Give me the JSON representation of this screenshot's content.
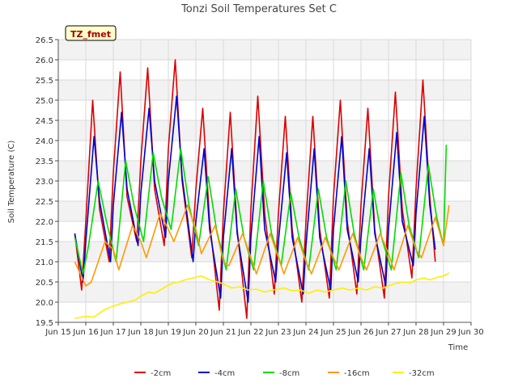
{
  "chart_data": {
    "type": "line",
    "title": "Tonzi Soil Temperatures Set C",
    "xlabel": "Time",
    "ylabel": "Soil Temperature (C)",
    "badge": "TZ_fmet",
    "xlim": [
      15,
      30
    ],
    "ylim": [
      19.5,
      26.5
    ],
    "yticks": [
      19.5,
      20.0,
      20.5,
      21.0,
      21.5,
      22.0,
      22.5,
      23.0,
      23.5,
      24.0,
      24.5,
      25.0,
      25.5,
      26.0,
      26.5
    ],
    "ytick_labels": [
      "19.5",
      "20.0",
      "20.5",
      "21.0",
      "21.5",
      "22.0",
      "22.5",
      "23.0",
      "23.5",
      "24.0",
      "24.5",
      "25.0",
      "25.5",
      "26.0",
      "26.5"
    ],
    "xticks": [
      15,
      16,
      17,
      18,
      19,
      20,
      21,
      22,
      23,
      24,
      25,
      26,
      27,
      28,
      29,
      30
    ],
    "xtick_labels": [
      "Jun 15",
      "Jun 16",
      "Jun 17",
      "Jun 18",
      "Jun 19",
      "Jun 20",
      "Jun 21",
      "Jun 22",
      "Jun 23",
      "Jun 24",
      "Jun 25",
      "Jun 26",
      "Jun 27",
      "Jun 28",
      "Jun 29",
      "Jun 30"
    ],
    "grid": true,
    "legend_position": "bottom",
    "series": [
      {
        "name": "-2cm",
        "color": "#dd0000",
        "x": [
          15.6,
          15.85,
          16.0,
          16.25,
          16.5,
          16.85,
          17.0,
          17.25,
          17.5,
          17.85,
          18.0,
          18.25,
          18.5,
          18.85,
          19.0,
          19.25,
          19.5,
          19.85,
          20.0,
          20.25,
          20.5,
          20.85,
          21.0,
          21.25,
          21.5,
          21.85,
          22.0,
          22.25,
          22.5,
          22.85,
          23.0,
          23.25,
          23.5,
          23.85,
          24.0,
          24.25,
          24.5,
          24.85,
          25.0,
          25.25,
          25.5,
          25.85,
          26.0,
          26.25,
          26.5,
          26.85,
          27.0,
          27.25,
          27.5,
          27.85,
          28.0,
          28.25,
          28.5,
          28.7
        ],
        "y": [
          21.7,
          20.3,
          22.0,
          25.0,
          22.3,
          21.0,
          23.2,
          25.7,
          22.6,
          21.5,
          23.5,
          25.8,
          22.8,
          21.4,
          23.8,
          26.0,
          23.0,
          21.1,
          22.8,
          24.8,
          22.0,
          19.8,
          22.2,
          24.7,
          21.8,
          19.6,
          22.3,
          25.1,
          22.2,
          20.2,
          22.2,
          24.6,
          21.8,
          20.0,
          22.0,
          24.6,
          21.8,
          20.1,
          22.6,
          25.0,
          22.0,
          20.2,
          22.4,
          24.8,
          21.8,
          20.1,
          22.6,
          25.2,
          22.3,
          20.6,
          22.8,
          25.5,
          22.6,
          21.0
        ]
      },
      {
        "name": "-4cm",
        "color": "#0000cc",
        "x": [
          15.6,
          15.9,
          16.0,
          16.3,
          16.5,
          16.9,
          17.0,
          17.3,
          17.5,
          17.9,
          18.0,
          18.3,
          18.5,
          18.9,
          19.0,
          19.3,
          19.5,
          19.9,
          20.0,
          20.3,
          20.5,
          20.9,
          21.0,
          21.3,
          21.5,
          21.9,
          22.0,
          22.3,
          22.5,
          22.9,
          23.0,
          23.3,
          23.5,
          23.9,
          24.0,
          24.3,
          24.5,
          24.9,
          25.0,
          25.3,
          25.5,
          25.9,
          26.0,
          26.3,
          26.5,
          26.9,
          27.0,
          27.3,
          27.5,
          27.9,
          28.0,
          28.3,
          28.5,
          28.7
        ],
        "y": [
          21.7,
          20.5,
          21.5,
          24.1,
          22.5,
          21.0,
          22.4,
          24.7,
          22.8,
          21.4,
          22.7,
          24.8,
          23.0,
          21.6,
          23.0,
          25.1,
          23.1,
          21.0,
          22.0,
          23.8,
          21.8,
          20.1,
          21.6,
          23.8,
          21.7,
          20.0,
          21.6,
          24.1,
          21.8,
          20.5,
          21.5,
          23.7,
          21.6,
          20.2,
          21.4,
          23.8,
          21.6,
          20.3,
          21.8,
          24.1,
          21.8,
          20.5,
          21.6,
          23.8,
          21.7,
          20.4,
          21.8,
          24.2,
          22.0,
          20.9,
          22.2,
          24.6,
          22.4,
          21.3
        ]
      },
      {
        "name": "-8cm",
        "color": "#00dd00",
        "x": [
          15.6,
          15.9,
          16.1,
          16.45,
          16.75,
          17.1,
          17.45,
          17.75,
          18.1,
          18.45,
          18.75,
          19.1,
          19.45,
          19.75,
          20.1,
          20.45,
          20.75,
          21.1,
          21.45,
          21.75,
          22.1,
          22.45,
          22.75,
          23.1,
          23.45,
          23.75,
          24.1,
          24.45,
          24.75,
          25.1,
          25.45,
          25.75,
          26.1,
          26.45,
          26.75,
          27.1,
          27.45,
          27.75,
          28.1,
          28.45,
          28.75,
          29.0,
          29.1
        ],
        "y": [
          21.6,
          20.7,
          21.4,
          23.0,
          22.0,
          21.0,
          23.5,
          22.4,
          21.5,
          23.7,
          22.6,
          21.8,
          23.8,
          22.4,
          21.4,
          23.1,
          21.8,
          20.8,
          22.8,
          21.6,
          20.8,
          23.0,
          21.7,
          20.9,
          22.7,
          21.6,
          20.8,
          22.8,
          21.6,
          20.8,
          23.0,
          21.7,
          20.8,
          22.8,
          21.6,
          20.8,
          23.2,
          21.9,
          21.1,
          23.4,
          22.1,
          21.4,
          23.9
        ]
      },
      {
        "name": "-16cm",
        "color": "#ff9900",
        "x": [
          15.6,
          16.0,
          16.2,
          16.7,
          17.0,
          17.2,
          17.7,
          18.0,
          18.2,
          18.7,
          19.0,
          19.2,
          19.7,
          20.0,
          20.2,
          20.7,
          21.0,
          21.2,
          21.7,
          22.0,
          22.2,
          22.7,
          23.0,
          23.2,
          23.7,
          24.0,
          24.2,
          24.7,
          25.0,
          25.2,
          25.7,
          26.0,
          26.2,
          26.7,
          27.0,
          27.2,
          27.7,
          28.0,
          28.2,
          28.7,
          29.0,
          29.2
        ],
        "y": [
          21.0,
          20.4,
          20.5,
          21.5,
          21.3,
          20.8,
          21.9,
          21.5,
          21.1,
          22.2,
          21.8,
          21.5,
          22.4,
          21.8,
          21.2,
          21.9,
          21.0,
          20.9,
          21.7,
          21.1,
          20.7,
          21.7,
          21.1,
          20.7,
          21.6,
          21.0,
          20.7,
          21.6,
          21.1,
          20.8,
          21.7,
          21.1,
          20.8,
          21.7,
          21.2,
          20.8,
          21.9,
          21.3,
          21.1,
          22.1,
          21.4,
          22.4
        ]
      },
      {
        "name": "-32cm",
        "color": "#ffee00",
        "x": [
          15.6,
          15.8,
          16.0,
          16.3,
          16.6,
          16.8,
          17.2,
          17.5,
          17.8,
          18.0,
          18.3,
          18.5,
          18.7,
          19.0,
          19.2,
          19.4,
          19.6,
          19.9,
          20.2,
          20.5,
          20.8,
          21.0,
          21.3,
          21.6,
          21.9,
          22.2,
          22.5,
          22.8,
          23.2,
          23.5,
          23.8,
          24.1,
          24.4,
          24.7,
          25.0,
          25.3,
          25.6,
          25.9,
          26.2,
          26.5,
          26.8,
          27.0,
          27.2,
          27.5,
          27.8,
          28.0,
          28.3,
          28.5,
          28.8,
          29.0,
          29.2
        ],
        "y": [
          19.6,
          19.62,
          19.65,
          19.63,
          19.78,
          19.85,
          19.95,
          20.0,
          20.05,
          20.15,
          20.25,
          20.22,
          20.3,
          20.42,
          20.48,
          20.5,
          20.55,
          20.6,
          20.65,
          20.55,
          20.5,
          20.45,
          20.35,
          20.38,
          20.3,
          20.32,
          20.25,
          20.3,
          20.35,
          20.28,
          20.3,
          20.22,
          20.3,
          20.25,
          20.3,
          20.35,
          20.3,
          20.35,
          20.3,
          20.38,
          20.35,
          20.4,
          20.45,
          20.5,
          20.48,
          20.55,
          20.6,
          20.55,
          20.62,
          20.65,
          20.72
        ]
      }
    ]
  }
}
